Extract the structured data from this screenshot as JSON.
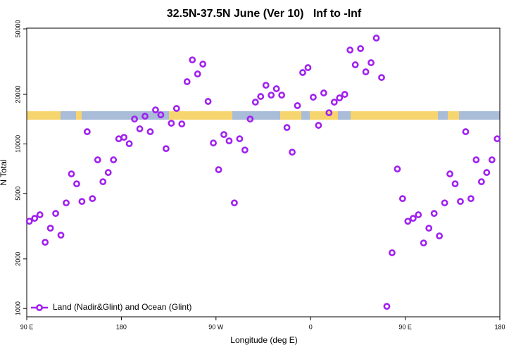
{
  "chart_data": {
    "type": "scatter",
    "title": "32.5N-37.5N June (Ver 10)   Inf to -Inf",
    "x_label": "Longitude (deg E)",
    "y_label": "N Total",
    "ylog": true,
    "legend": "bottom-left",
    "grid": false,
    "xlim": [
      90,
      540
    ],
    "ylim": [
      890,
      50500
    ],
    "xticks": [
      {
        "value": 90,
        "label": "90 E"
      },
      {
        "value": 180,
        "label": "180"
      },
      {
        "value": 270,
        "label": "90 W"
      },
      {
        "value": 360,
        "label": "0"
      },
      {
        "value": 450,
        "label": "90 E"
      },
      {
        "value": 540,
        "label": "180"
      }
    ],
    "yticks": [
      1000,
      2000,
      5000,
      10000,
      20000,
      50000
    ],
    "series": [
      {
        "name": "Land (Nadir&Glint) and Ocean (Glint)",
        "color": "#a020f0",
        "x": [
          92.5,
          97.5,
          102.5,
          107.5,
          112.5,
          117.5,
          122.5,
          127.5,
          132.5,
          137.5,
          142.5,
          147.5,
          152.5,
          157.5,
          162.5,
          167.5,
          172.5,
          177.5,
          182.5,
          187.5,
          192.5,
          197.5,
          202.5,
          207.5,
          212.5,
          217.5,
          222.5,
          227.5,
          232.5,
          237.5,
          242.5,
          247.5,
          252.5,
          257.5,
          262.5,
          267.5,
          272.5,
          277.5,
          282.5,
          287.5,
          292.5,
          297.5,
          302.5,
          307.5,
          312.5,
          317.5,
          322.5,
          327.5,
          332.5,
          337.5,
          342.5,
          347.5,
          352.5,
          357.5,
          362.5,
          367.5,
          372.5,
          377.5,
          382.5,
          387.5,
          392.5,
          397.5,
          402.5,
          407.5,
          412.5,
          417.5,
          422.5,
          427.5,
          432.5,
          437.5,
          442.5,
          447.5,
          452.5,
          457.5,
          462.5,
          467.5,
          472.5,
          477.5,
          482.5,
          487.5,
          492.5,
          497.5,
          502.5,
          507.5,
          512.5,
          517.5,
          522.5,
          527.5,
          532.5,
          537.5
        ],
        "values": [
          3390,
          3530,
          3710,
          2525,
          3075,
          3780,
          2790,
          4380,
          6570,
          5720,
          4470,
          11860,
          4650,
          8000,
          5890,
          6700,
          8000,
          10740,
          10960,
          10030,
          14160,
          12340,
          14730,
          11860,
          16090,
          15020,
          9360,
          13350,
          16420,
          13220,
          23870,
          32390,
          26600,
          30540,
          18120,
          10130,
          6970,
          11400,
          10430,
          4380,
          10740,
          9180,
          14160,
          17940,
          19410,
          22720,
          19790,
          21630,
          19790,
          12580,
          8910,
          17080,
          27140,
          29070,
          19220,
          12960,
          20390,
          15470,
          17940,
          19030,
          19990,
          37190,
          30240,
          37930,
          27400,
          31140,
          43970,
          25320,
          1030,
          2180,
          7040,
          4650,
          3390,
          3530,
          3710,
          2500,
          3075,
          3780,
          2760,
          4380,
          6570,
          5720,
          4470,
          11860,
          4650,
          8000,
          5890,
          6700,
          8000,
          10740
        ]
      }
    ]
  }
}
